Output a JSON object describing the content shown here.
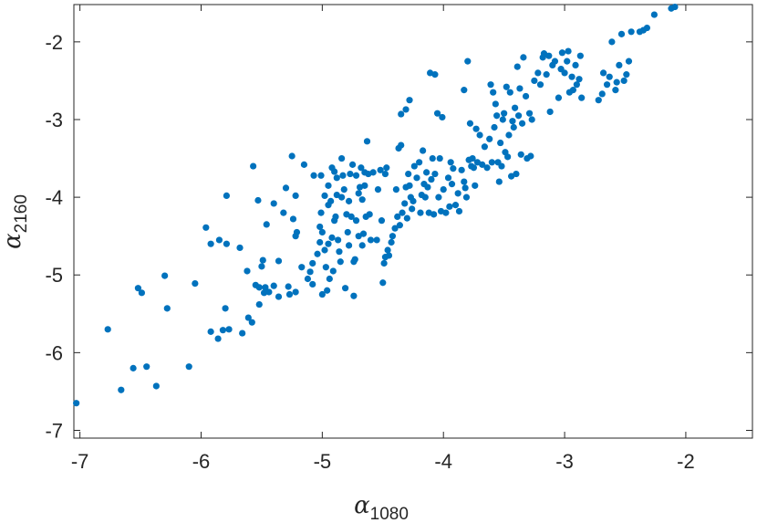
{
  "chart_data": {
    "type": "scatter",
    "title": "",
    "xlabel": {
      "symbol": "α",
      "subscript": "1080"
    },
    "ylabel": {
      "symbol": "α",
      "subscript": "2160"
    },
    "xlim": [
      -7.05,
      -1.45
    ],
    "ylim": [
      -7.1,
      -1.52
    ],
    "xticks": [
      -7,
      -6,
      -5,
      -4,
      -3,
      -2
    ],
    "yticks": [
      -7,
      -6,
      -5,
      -4,
      -3,
      -2
    ],
    "xtick_labels": [
      "-7",
      "-6",
      "-5",
      "-4",
      "-3",
      "-2"
    ],
    "ytick_labels": [
      "-7",
      "-6",
      "-5",
      "-4",
      "-3",
      "-2"
    ],
    "grid": false,
    "legend": "none",
    "marker_color": "#0072BD",
    "points": [
      [
        -7.03,
        -6.65
      ],
      [
        -6.77,
        -5.7
      ],
      [
        -6.66,
        -6.48
      ],
      [
        -6.56,
        -6.2
      ],
      [
        -6.52,
        -5.17
      ],
      [
        -6.49,
        -5.23
      ],
      [
        -6.45,
        -6.18
      ],
      [
        -6.37,
        -6.43
      ],
      [
        -6.3,
        -5.01
      ],
      [
        -6.28,
        -5.43
      ],
      [
        -6.1,
        -6.18
      ],
      [
        -6.05,
        -5.11
      ],
      [
        -5.96,
        -4.39
      ],
      [
        -5.92,
        -4.6
      ],
      [
        -5.92,
        -5.73
      ],
      [
        -5.86,
        -5.82
      ],
      [
        -5.85,
        -4.55
      ],
      [
        -5.82,
        -5.71
      ],
      [
        -5.8,
        -5.43
      ],
      [
        -5.79,
        -3.98
      ],
      [
        -5.79,
        -4.6
      ],
      [
        -5.77,
        -5.7
      ],
      [
        -5.68,
        -4.65
      ],
      [
        -5.66,
        -5.75
      ],
      [
        -5.62,
        -4.95
      ],
      [
        -5.61,
        -5.55
      ],
      [
        -5.58,
        -5.61
      ],
      [
        -5.57,
        -3.6
      ],
      [
        -5.55,
        -5.13
      ],
      [
        -5.53,
        -4.04
      ],
      [
        -5.52,
        -5.16
      ],
      [
        -5.52,
        -5.38
      ],
      [
        -5.5,
        -4.89
      ],
      [
        -5.49,
        -4.81
      ],
      [
        -5.48,
        -5.23
      ],
      [
        -5.47,
        -5.16
      ],
      [
        -5.46,
        -4.35
      ],
      [
        -5.44,
        -5.22
      ],
      [
        -5.4,
        -5.14
      ],
      [
        -5.4,
        -4.08
      ],
      [
        -5.36,
        -4.82
      ],
      [
        -5.36,
        -5.28
      ],
      [
        -5.32,
        -4.2
      ],
      [
        -5.3,
        -3.88
      ],
      [
        -5.28,
        -5.15
      ],
      [
        -5.27,
        -5.25
      ],
      [
        -5.25,
        -3.47
      ],
      [
        -5.24,
        -4.28
      ],
      [
        -5.22,
        -5.22
      ],
      [
        -5.22,
        -3.98
      ],
      [
        -5.22,
        -4.5
      ],
      [
        -5.21,
        -4.45
      ],
      [
        -5.17,
        -4.9
      ],
      [
        -5.15,
        -3.58
      ],
      [
        -5.12,
        -5.05
      ],
      [
        -5.1,
        -4.96
      ],
      [
        -5.08,
        -4.85
      ],
      [
        -5.08,
        -5.12
      ],
      [
        -5.07,
        -3.72
      ],
      [
        -5.04,
        -4.73
      ],
      [
        -5.02,
        -4.58
      ],
      [
        -5.02,
        -4.38
      ],
      [
        -5.01,
        -4.2
      ],
      [
        -5.01,
        -3.72
      ],
      [
        -5.0,
        -4.45
      ],
      [
        -5.0,
        -5.25
      ],
      [
        -4.98,
        -3.98
      ],
      [
        -4.98,
        -4.68
      ],
      [
        -4.97,
        -4.9
      ],
      [
        -4.96,
        -5.2
      ],
      [
        -4.95,
        -3.85
      ],
      [
        -4.95,
        -4.6
      ],
      [
        -4.95,
        -4.1
      ],
      [
        -4.94,
        -5.05
      ],
      [
        -4.93,
        -4.05
      ],
      [
        -4.92,
        -4.52
      ],
      [
        -4.92,
        -3.62
      ],
      [
        -4.91,
        -4.95
      ],
      [
        -4.9,
        -4.3
      ],
      [
        -4.9,
        -3.67
      ],
      [
        -4.89,
        -4.25
      ],
      [
        -4.88,
        -3.97
      ],
      [
        -4.88,
        -3.75
      ],
      [
        -4.87,
        -4.55
      ],
      [
        -4.86,
        -4.7
      ],
      [
        -4.85,
        -4.83
      ],
      [
        -4.84,
        -3.5
      ],
      [
        -4.84,
        -4.0
      ],
      [
        -4.83,
        -3.72
      ],
      [
        -4.82,
        -3.9
      ],
      [
        -4.81,
        -5.17
      ],
      [
        -4.8,
        -4.22
      ],
      [
        -4.79,
        -4.45
      ],
      [
        -4.78,
        -4.62
      ],
      [
        -4.78,
        -4.05
      ],
      [
        -4.77,
        -3.7
      ],
      [
        -4.76,
        -4.25
      ],
      [
        -4.75,
        -3.58
      ],
      [
        -4.74,
        -4.83
      ],
      [
        -4.74,
        -5.27
      ],
      [
        -4.73,
        -4.8
      ],
      [
        -4.72,
        -3.72
      ],
      [
        -4.72,
        -4.3
      ],
      [
        -4.7,
        -3.95
      ],
      [
        -4.7,
        -4.5
      ],
      [
        -4.69,
        -3.87
      ],
      [
        -4.68,
        -3.62
      ],
      [
        -4.67,
        -4.03
      ],
      [
        -4.67,
        -4.62
      ],
      [
        -4.66,
        -4.47
      ],
      [
        -4.65,
        -3.85
      ],
      [
        -4.65,
        -3.68
      ],
      [
        -4.64,
        -4.25
      ],
      [
        -4.63,
        -3.28
      ],
      [
        -4.62,
        -3.7
      ],
      [
        -4.61,
        -4.22
      ],
      [
        -4.6,
        -4.55
      ],
      [
        -4.58,
        -3.68
      ],
      [
        -4.55,
        -4.55
      ],
      [
        -4.54,
        -3.9
      ],
      [
        -4.52,
        -3.65
      ],
      [
        -4.51,
        -4.3
      ],
      [
        -4.5,
        -5.1
      ],
      [
        -4.49,
        -4.85
      ],
      [
        -4.48,
        -4.77
      ],
      [
        -4.48,
        -3.7
      ],
      [
        -4.47,
        -3.62
      ],
      [
        -4.46,
        -4.68
      ],
      [
        -4.45,
        -4.75
      ],
      [
        -4.43,
        -4.58
      ],
      [
        -4.42,
        -4.5
      ],
      [
        -4.4,
        -4.4
      ],
      [
        -4.39,
        -3.9
      ],
      [
        -4.38,
        -4.25
      ],
      [
        -4.37,
        -3.37
      ],
      [
        -4.36,
        -4.36
      ],
      [
        -4.35,
        -3.33
      ],
      [
        -4.35,
        -2.93
      ],
      [
        -4.34,
        -4.2
      ],
      [
        -4.32,
        -4.08
      ],
      [
        -4.31,
        -2.87
      ],
      [
        -4.31,
        -3.87
      ],
      [
        -4.3,
        -4.27
      ],
      [
        -4.29,
        -3.7
      ],
      [
        -4.28,
        -2.75
      ],
      [
        -4.28,
        -3.85
      ],
      [
        -4.27,
        -4.0
      ],
      [
        -4.26,
        -4.15
      ],
      [
        -4.25,
        -4.05
      ],
      [
        -4.24,
        -3.6
      ],
      [
        -4.22,
        -3.75
      ],
      [
        -4.2,
        -3.55
      ],
      [
        -4.19,
        -4.2
      ],
      [
        -4.18,
        -3.97
      ],
      [
        -4.17,
        -3.4
      ],
      [
        -4.16,
        -3.83
      ],
      [
        -4.15,
        -4.0
      ],
      [
        -4.14,
        -3.68
      ],
      [
        -4.13,
        -3.87
      ],
      [
        -4.12,
        -4.2
      ],
      [
        -4.11,
        -2.4
      ],
      [
        -4.1,
        -3.77
      ],
      [
        -4.09,
        -3.5
      ],
      [
        -4.08,
        -4.22
      ],
      [
        -4.07,
        -2.42
      ],
      [
        -4.07,
        -3.7
      ],
      [
        -4.05,
        -2.92
      ],
      [
        -4.04,
        -4.0
      ],
      [
        -4.03,
        -3.5
      ],
      [
        -4.02,
        -4.18
      ],
      [
        -4.01,
        -2.97
      ],
      [
        -4.0,
        -3.9
      ],
      [
        -3.98,
        -4.2
      ],
      [
        -3.96,
        -3.75
      ],
      [
        -3.95,
        -4.12
      ],
      [
        -3.94,
        -3.55
      ],
      [
        -3.93,
        -3.83
      ],
      [
        -3.92,
        -3.63
      ],
      [
        -3.9,
        -4.1
      ],
      [
        -3.88,
        -3.95
      ],
      [
        -3.87,
        -4.18
      ],
      [
        -3.85,
        -3.65
      ],
      [
        -3.83,
        -2.62
      ],
      [
        -3.83,
        -3.8
      ],
      [
        -3.82,
        -3.88
      ],
      [
        -3.81,
        -4.0
      ],
      [
        -3.8,
        -2.25
      ],
      [
        -3.79,
        -3.52
      ],
      [
        -3.78,
        -3.05
      ],
      [
        -3.77,
        -3.6
      ],
      [
        -3.76,
        -3.5
      ],
      [
        -3.75,
        -3.62
      ],
      [
        -3.74,
        -3.85
      ],
      [
        -3.73,
        -3.12
      ],
      [
        -3.72,
        -3.55
      ],
      [
        -3.7,
        -3.2
      ],
      [
        -3.68,
        -3.58
      ],
      [
        -3.66,
        -3.35
      ],
      [
        -3.64,
        -3.62
      ],
      [
        -3.62,
        -3.25
      ],
      [
        -3.61,
        -2.55
      ],
      [
        -3.6,
        -3.55
      ],
      [
        -3.59,
        -2.65
      ],
      [
        -3.58,
        -3.1
      ],
      [
        -3.57,
        -2.8
      ],
      [
        -3.56,
        -2.95
      ],
      [
        -3.55,
        -3.55
      ],
      [
        -3.54,
        -3.8
      ],
      [
        -3.53,
        -3.3
      ],
      [
        -3.52,
        -3.6
      ],
      [
        -3.51,
        -3.0
      ],
      [
        -3.5,
        -2.92
      ],
      [
        -3.49,
        -3.42
      ],
      [
        -3.48,
        -2.58
      ],
      [
        -3.47,
        -3.48
      ],
      [
        -3.46,
        -3.2
      ],
      [
        -3.45,
        -2.65
      ],
      [
        -3.44,
        -3.73
      ],
      [
        -3.43,
        -3.02
      ],
      [
        -3.42,
        -3.1
      ],
      [
        -3.41,
        -2.85
      ],
      [
        -3.4,
        -3.7
      ],
      [
        -3.39,
        -2.32
      ],
      [
        -3.38,
        -2.95
      ],
      [
        -3.37,
        -2.6
      ],
      [
        -3.36,
        -3.45
      ],
      [
        -3.35,
        -3.05
      ],
      [
        -3.34,
        -2.2
      ],
      [
        -3.32,
        -2.7
      ],
      [
        -3.31,
        -3.5
      ],
      [
        -3.29,
        -2.92
      ],
      [
        -3.28,
        -3.47
      ],
      [
        -3.27,
        -3.0
      ],
      [
        -3.25,
        -2.5
      ],
      [
        -3.22,
        -2.4
      ],
      [
        -3.2,
        -2.55
      ],
      [
        -3.18,
        -2.2
      ],
      [
        -3.17,
        -2.15
      ],
      [
        -3.15,
        -2.42
      ],
      [
        -3.13,
        -2.18
      ],
      [
        -3.12,
        -2.9
      ],
      [
        -3.1,
        -2.3
      ],
      [
        -3.08,
        -2.25
      ],
      [
        -3.05,
        -2.72
      ],
      [
        -3.03,
        -2.35
      ],
      [
        -3.02,
        -2.14
      ],
      [
        -3.0,
        -2.4
      ],
      [
        -2.98,
        -2.25
      ],
      [
        -2.97,
        -2.12
      ],
      [
        -2.96,
        -2.65
      ],
      [
        -2.94,
        -2.45
      ],
      [
        -2.93,
        -2.62
      ],
      [
        -2.91,
        -2.3
      ],
      [
        -2.9,
        -2.55
      ],
      [
        -2.88,
        -2.48
      ],
      [
        -2.87,
        -2.18
      ],
      [
        -2.86,
        -2.72
      ],
      [
        -2.72,
        -2.75
      ],
      [
        -2.69,
        -2.67
      ],
      [
        -2.68,
        -2.4
      ],
      [
        -2.65,
        -2.55
      ],
      [
        -2.63,
        -2.45
      ],
      [
        -2.61,
        -2.0
      ],
      [
        -2.58,
        -2.62
      ],
      [
        -2.57,
        -2.52
      ],
      [
        -2.55,
        -2.3
      ],
      [
        -2.53,
        -1.9
      ],
      [
        -2.51,
        -2.5
      ],
      [
        -2.49,
        -2.42
      ],
      [
        -2.47,
        -2.25
      ],
      [
        -2.45,
        -1.87
      ],
      [
        -2.38,
        -1.87
      ],
      [
        -2.35,
        -1.85
      ],
      [
        -2.32,
        -1.82
      ],
      [
        -2.26,
        -1.65
      ],
      [
        -2.12,
        -1.57
      ],
      [
        -2.09,
        -1.55
      ]
    ]
  }
}
